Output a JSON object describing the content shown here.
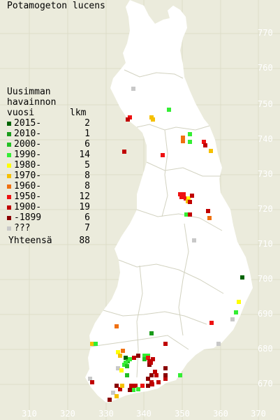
{
  "title": "Potamogeton lucens",
  "legend": {
    "heading": [
      "Uusimman",
      "havainnon"
    ],
    "col_year": "vuosi",
    "col_count": "lkm",
    "rows": [
      {
        "label": "2015-",
        "count": "2",
        "color": "#006400"
      },
      {
        "label": "2010-",
        "count": "1",
        "color": "#1a9b1a"
      },
      {
        "label": "2000-",
        "count": "6",
        "color": "#22c022"
      },
      {
        "label": "1990-",
        "count": "14",
        "color": "#33ee33"
      },
      {
        "label": "1980-",
        "count": "5",
        "color": "#ffff00"
      },
      {
        "label": "1970-",
        "count": "8",
        "color": "#f5c000"
      },
      {
        "label": "1960-",
        "count": "8",
        "color": "#f07010"
      },
      {
        "label": "1950-",
        "count": "12",
        "color": "#ee1111"
      },
      {
        "label": "1900-",
        "count": "19",
        "color": "#c00000"
      },
      {
        "label": "-1899",
        "count": "6",
        "color": "#8a0000"
      },
      {
        "label": "???",
        "count": "7",
        "color": "#c8c8c8"
      }
    ],
    "total_label": "Yhteensä",
    "total": "88"
  },
  "x_ticks": [
    "310",
    "320",
    "330",
    "340",
    "350",
    "360",
    "370"
  ],
  "y_ticks": [
    "770",
    "760",
    "750",
    "740",
    "730",
    "720",
    "710",
    "700",
    "690",
    "680",
    "670"
  ],
  "colors": {
    "background": "#ebebdc",
    "land": "#ffffff",
    "grid": "#dcdcc8",
    "province_border": "#c8c8b4",
    "tick_text": "#ffffff"
  }
}
